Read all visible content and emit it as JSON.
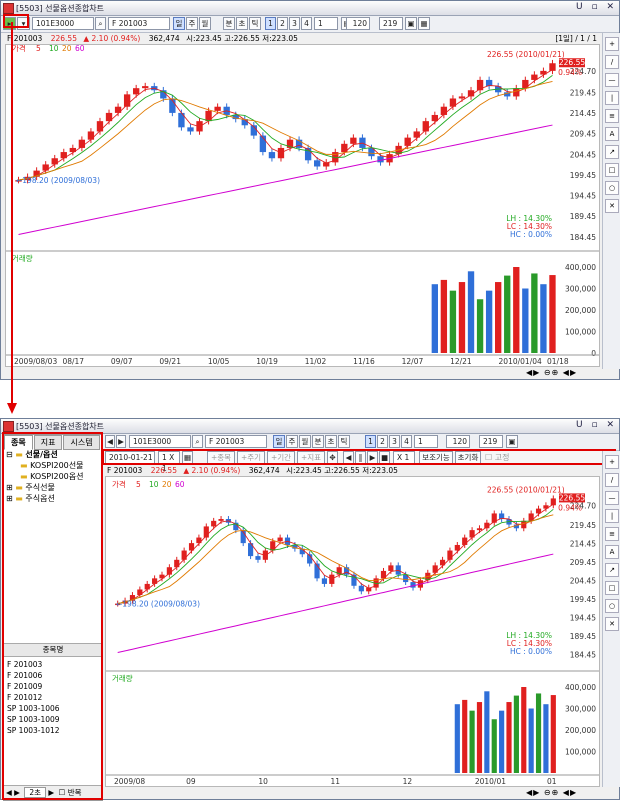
{
  "window": {
    "title": "[5503] 선물옵션종합차트"
  },
  "toolbar": {
    "account": "101E3000",
    "symbol": "F 201003",
    "buttons": [
      "일",
      "주",
      "월",
      "분",
      "초",
      "틱"
    ],
    "pages": [
      "1",
      "2",
      "3",
      "4"
    ],
    "page_select": "1",
    "count": "120",
    "total": "219"
  },
  "info": {
    "code": "F 201003",
    "price": "226.55",
    "change": "▲ 2.10 (0.94%)",
    "volume": "362,474",
    "open": "시:223.45",
    "high": "고:226.55",
    "low": "저:223.05",
    "pager": "[1일] / 1 / 1"
  },
  "legend": {
    "price_label": "가격",
    "ma": [
      "5",
      "10",
      "20",
      "60"
    ],
    "volume_label": "거래량"
  },
  "annotations": {
    "high_note": "226.55 (2010/01/21)",
    "low_note": "198.20 (2009/08/03)",
    "price_box": "226.55",
    "pct_box": "0.94%",
    "lh": "LH : 14.30%",
    "lc": "LC : 14.30%",
    "hc": "HC : 0.00%"
  },
  "colors": {
    "up": "#e0201f",
    "down": "#2f6fd8",
    "ma5": "#e0201f",
    "ma10": "#22aa22",
    "ma20": "#e07a00",
    "ma60": "#d000d0",
    "highlight": "#e00000"
  },
  "top_chart": {
    "price_ticks": [
      "224.70",
      "219.45",
      "214.45",
      "209.45",
      "204.45",
      "199.45",
      "194.45",
      "189.45",
      "184.45"
    ],
    "volume_ticks": [
      "400,000",
      "300,000",
      "200,000",
      "100,000",
      "0"
    ],
    "date_ticks": [
      "2009/08/03",
      "08/17",
      "09/07",
      "09/21",
      "10/05",
      "10/19",
      "11/02",
      "11/16",
      "12/07",
      "12/21",
      "2010/01/04",
      "01/18"
    ]
  },
  "bottom_panel": {
    "tabs": [
      "종목",
      "지표",
      "시스템"
    ],
    "tree": [
      {
        "label": "선물/옵션",
        "expanded": true
      },
      {
        "label": "KOSPI200선물"
      },
      {
        "label": "KOSPI200옵션"
      },
      {
        "label": "주식선물"
      },
      {
        "label": "주식옵션"
      }
    ],
    "list_header": "종목명",
    "list": [
      "F 201003",
      "F 201006",
      "F 201009",
      "F 201012",
      "SP 1003-1006",
      "SP 1003-1009",
      "SP 1003-1012"
    ],
    "footer": {
      "speed": "2초",
      "repeat": "반복"
    }
  },
  "bottom_toolbar2": {
    "date": "2010-01-21",
    "ratio": "1 X 1",
    "buttons": [
      "+종목",
      "+주기",
      "+기간",
      "+지표"
    ],
    "multiplier": "X 1",
    "aux": "보조기능",
    "reset": "초기화",
    "fix": "고정"
  },
  "bottom_chart": {
    "price_ticks": [
      "224.70",
      "219.45",
      "214.45",
      "209.45",
      "204.45",
      "199.45",
      "194.45",
      "189.45",
      "184.45"
    ],
    "volume_ticks": [
      "400,000",
      "300,000",
      "200,000",
      "100,000"
    ],
    "date_ticks": [
      "2009/08",
      "09",
      "10",
      "11",
      "12",
      "2010/01",
      "01"
    ]
  },
  "chart_data": {
    "type": "candlestick",
    "x_range": [
      "2009/08/03",
      "2010/01/21"
    ],
    "y_range": [
      184.45,
      226.55
    ],
    "close_path_estimate": [
      198.2,
      199,
      200.5,
      202,
      203.5,
      205,
      206,
      208,
      210,
      212.5,
      214.5,
      216,
      219,
      220.5,
      221,
      220,
      218,
      214.5,
      211,
      210,
      212.5,
      215,
      216,
      214,
      213,
      211.5,
      209,
      205,
      203.5,
      206,
      208,
      206,
      203,
      201.5,
      202.5,
      205,
      207,
      208.5,
      206,
      204,
      202.5,
      204.5,
      206.5,
      208.5,
      210,
      212.5,
      214,
      216,
      218,
      218.5,
      220,
      222.5,
      221,
      219.5,
      218.5,
      220.5,
      222.5,
      223.8,
      224.7,
      226.55
    ],
    "volume_estimate": [
      0,
      0,
      0,
      0,
      0,
      0,
      0,
      0,
      0,
      0,
      0,
      0,
      0,
      0,
      0,
      0,
      0,
      0,
      0,
      0,
      0,
      0,
      0,
      0,
      0,
      0,
      0,
      0,
      0,
      0,
      0,
      0,
      0,
      0,
      0,
      0,
      0,
      0,
      0,
      0,
      0,
      0,
      0,
      0,
      0,
      0,
      320000,
      340000,
      290000,
      330000,
      380000,
      250000,
      290000,
      330000,
      360000,
      400000,
      300000,
      370000,
      320000,
      362474
    ]
  }
}
